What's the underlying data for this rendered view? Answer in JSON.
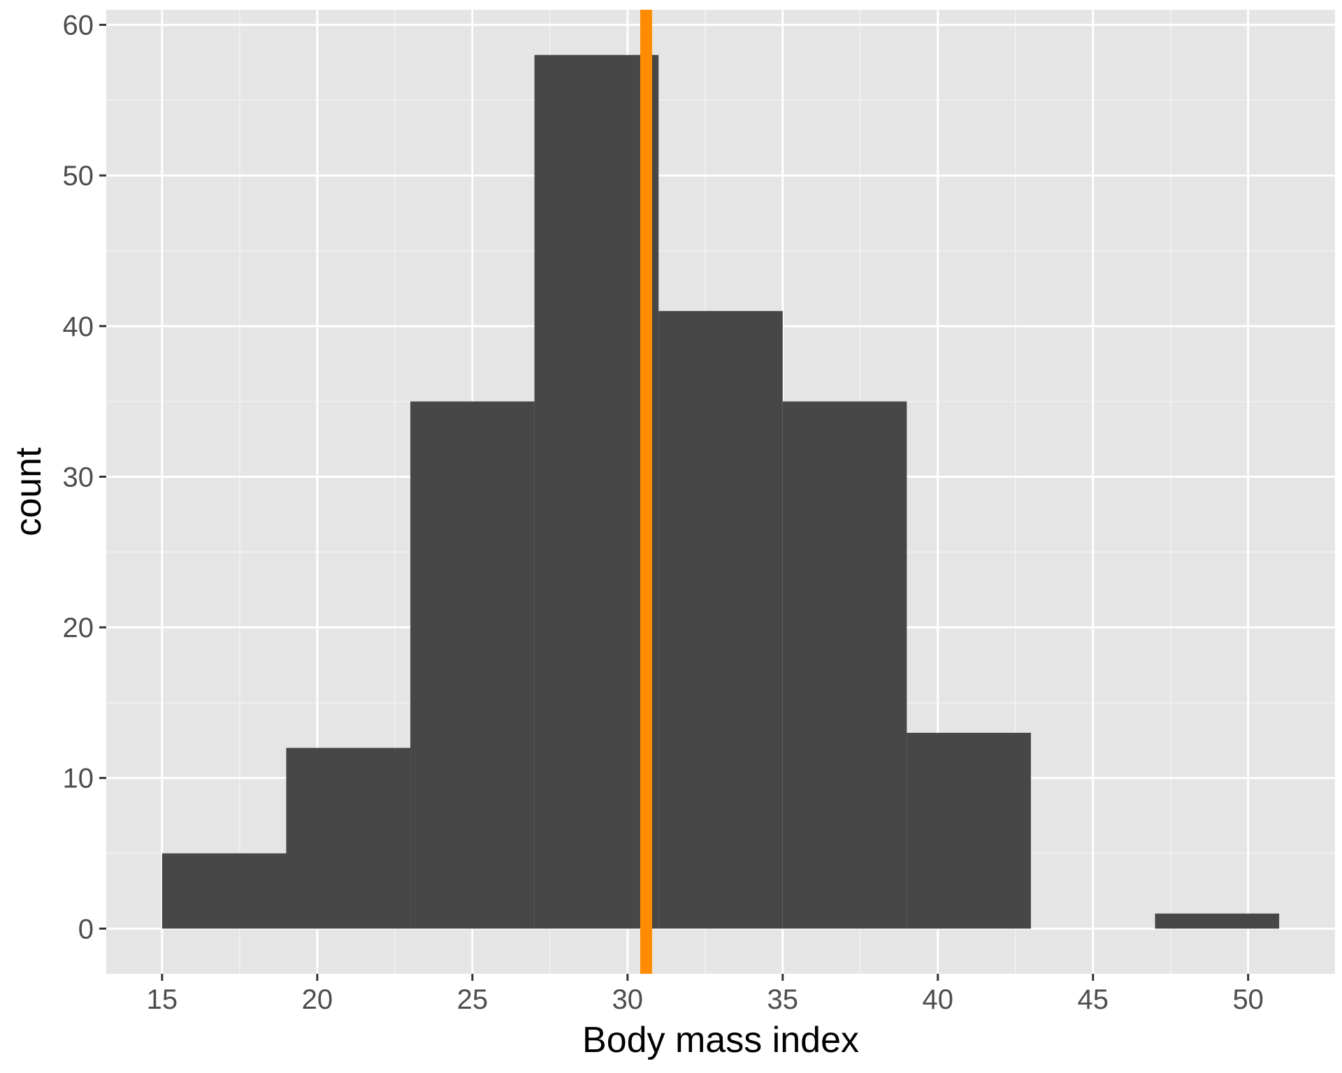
{
  "chart_data": {
    "type": "histogram",
    "xlabel": "Body mass index",
    "ylabel": "count",
    "xlim": [
      13.2,
      52.8
    ],
    "ylim": [
      -3,
      61
    ],
    "x_ticks": [
      15,
      20,
      25,
      30,
      35,
      40,
      45,
      50
    ],
    "y_ticks": [
      0,
      10,
      20,
      30,
      40,
      50,
      60
    ],
    "bins": [
      {
        "x0": 15,
        "x1": 19,
        "count": 5
      },
      {
        "x0": 19,
        "x1": 23,
        "count": 12
      },
      {
        "x0": 23,
        "x1": 27,
        "count": 35
      },
      {
        "x0": 27,
        "x1": 31,
        "count": 58
      },
      {
        "x0": 31,
        "x1": 35,
        "count": 41
      },
      {
        "x0": 35,
        "x1": 39,
        "count": 35
      },
      {
        "x0": 39,
        "x1": 43,
        "count": 13
      },
      {
        "x0": 43,
        "x1": 47,
        "count": 0
      },
      {
        "x0": 47,
        "x1": 51,
        "count": 1
      }
    ],
    "vline": {
      "x": 30.6,
      "color": "#FF8C00"
    },
    "bar_color": "#474747",
    "panel_background": "#E5E5E5",
    "grid": true
  }
}
